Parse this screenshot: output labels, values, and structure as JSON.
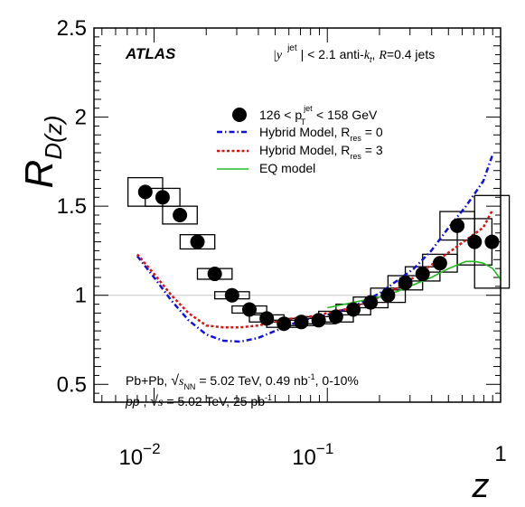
{
  "chart_data": {
    "type": "scatter",
    "xlabel": "z",
    "ylabel_main": "R",
    "ylabel_sub": "D(z)",
    "xscale": "log",
    "xlim": [
      0.0045,
      1.0
    ],
    "ylim": [
      0.4,
      2.5
    ],
    "reference_line": 1.0,
    "y_ticks": [
      0.5,
      1.0,
      1.5,
      2.0,
      2.5
    ],
    "y_tick_labels": [
      "0.5",
      "1",
      "1.5",
      "2",
      "2.5"
    ],
    "x_ticks": [
      0.01,
      0.1,
      1
    ],
    "x_tick_base": "10",
    "x_tick_exponents": [
      "−2",
      "−1",
      ""
    ],
    "x_tick_plain": [
      "",
      "",
      "1"
    ],
    "annotations": {
      "atlas": "ATLAS",
      "selection_prefix": "|y",
      "selection_sup": "jet",
      "selection_mid": "| < 2.1 anti-",
      "selection_k": "k",
      "selection_t": "t",
      "selection_comma": ", ",
      "selection_R": "R",
      "selection_end": "=0.4 jets",
      "pbpb_line_a": "Pb+Pb, ",
      "pbpb_sqrt": "√",
      "pbpb_s": "s",
      "pbpb_nn": "NN",
      "pbpb_line_b": " = 5.02 TeV, 0.49 nb",
      "pbpb_exp": "-1",
      "pbpb_line_c": ", 0-10%",
      "pp_pp": "pp",
      "pp_comma": " , ",
      "pp_sqrt": "√",
      "pp_s": "s",
      "pp_line_b": " = 5.02 TeV, 25 pb",
      "pp_exp": "-1"
    },
    "legend": {
      "data_a": "126  <  p",
      "data_sup": "jet",
      "data_sub": "T",
      "data_b": "  <  158 GeV",
      "hybrid0_a": "Hybrid Model, R",
      "hybrid0_sub": "res",
      "hybrid0_b": " = 0",
      "hybrid3_a": "Hybrid Model, R",
      "hybrid3_sub": "res",
      "hybrid3_b": " = 3",
      "eq": "EQ model"
    },
    "data_points": {
      "z": [
        0.0089,
        0.0112,
        0.0141,
        0.0178,
        0.0224,
        0.0282,
        0.0355,
        0.0447,
        0.0562,
        0.0708,
        0.0891,
        0.1122,
        0.1413,
        0.1778,
        0.2239,
        0.2818,
        0.3548,
        0.4467,
        0.5623,
        0.7079,
        0.8913
      ],
      "y": [
        1.58,
        1.55,
        1.45,
        1.3,
        1.12,
        1.0,
        0.92,
        0.87,
        0.84,
        0.85,
        0.86,
        0.88,
        0.92,
        0.96,
        1.0,
        1.07,
        1.12,
        1.18,
        1.39,
        1.3,
        1.3
      ],
      "syst": [
        0.08,
        0.05,
        0.05,
        0.04,
        0.03,
        0.02,
        0.02,
        0.02,
        0.02,
        0.02,
        0.02,
        0.03,
        0.03,
        0.03,
        0.04,
        0.04,
        0.04,
        0.05,
        0.08,
        0.13,
        0.26
      ],
      "color": "#000000"
    },
    "series": [
      {
        "name": "Hybrid Model, R_res = 0",
        "style": "dash-dot",
        "color": "#1111dd",
        "x": [
          0.008,
          0.01,
          0.0126,
          0.0158,
          0.02,
          0.0251,
          0.0316,
          0.0398,
          0.0501,
          0.0631,
          0.0794,
          0.1,
          0.1259,
          0.1585,
          0.1995,
          0.2512,
          0.3162,
          0.3981,
          0.5012,
          0.631,
          0.7943,
          0.9
        ],
        "y": [
          1.22,
          1.1,
          0.97,
          0.86,
          0.78,
          0.745,
          0.74,
          0.76,
          0.8,
          0.84,
          0.87,
          0.89,
          0.92,
          0.96,
          1.01,
          1.08,
          1.15,
          1.25,
          1.38,
          1.5,
          1.64,
          1.79
        ]
      },
      {
        "name": "Hybrid Model, R_res = 3",
        "style": "dotted",
        "color": "#dd1111",
        "x": [
          0.008,
          0.01,
          0.0126,
          0.0158,
          0.02,
          0.0251,
          0.0316,
          0.0398,
          0.0501,
          0.0631,
          0.0794,
          0.1,
          0.1259,
          0.1585,
          0.1995,
          0.2512,
          0.3162,
          0.3981,
          0.5012,
          0.631,
          0.7943,
          0.9
        ],
        "y": [
          1.23,
          1.12,
          1.0,
          0.9,
          0.83,
          0.82,
          0.82,
          0.83,
          0.85,
          0.87,
          0.88,
          0.9,
          0.92,
          0.95,
          0.99,
          1.04,
          1.1,
          1.17,
          1.24,
          1.31,
          1.38,
          1.48
        ]
      },
      {
        "name": "EQ model",
        "style": "solid",
        "color": "#22bb22",
        "x": [
          0.1,
          0.1259,
          0.1585,
          0.1995,
          0.2512,
          0.3162,
          0.3981,
          0.5012,
          0.631,
          0.7079,
          0.7943,
          0.9,
          1.0
        ],
        "y": [
          0.93,
          0.95,
          0.97,
          0.99,
          1.02,
          1.06,
          1.1,
          1.15,
          1.19,
          1.19,
          1.18,
          1.15,
          1.09
        ]
      }
    ]
  }
}
